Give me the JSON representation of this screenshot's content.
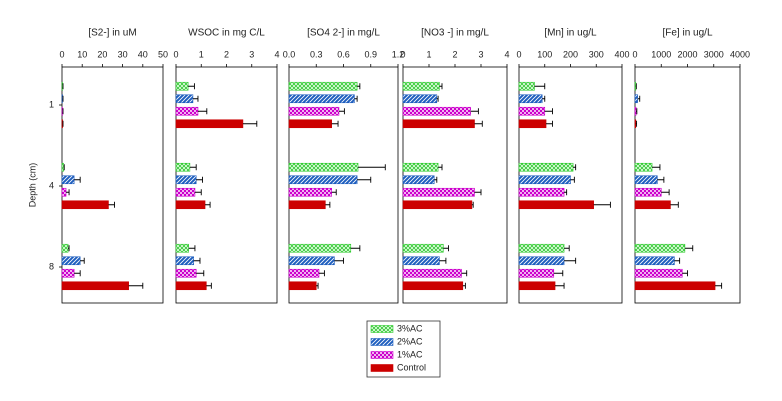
{
  "chart_data": [
    {
      "type": "bar",
      "orientation": "horizontal",
      "title": "[S2-] in uM",
      "y_label": "Depth (cm)",
      "categories": [
        "1",
        "4",
        "8"
      ],
      "xlim": [
        0,
        50
      ],
      "xticks": [
        0,
        10,
        20,
        30,
        40,
        50
      ],
      "series": [
        {
          "name": "3%AC",
          "color": "#33cc33",
          "values": [
            0.3,
            0.8,
            3
          ],
          "errors": [
            0.2,
            0.3,
            0.5
          ]
        },
        {
          "name": "2%AC",
          "color": "#1f5fbf",
          "values": [
            0.3,
            6,
            9
          ],
          "errors": [
            0.2,
            3,
            2
          ]
        },
        {
          "name": "1%AC",
          "color": "#cc00cc",
          "values": [
            0.3,
            2,
            6
          ],
          "errors": [
            0.2,
            1.5,
            3
          ]
        },
        {
          "name": "Control",
          "color": "#cc0000",
          "values": [
            0.3,
            23,
            33
          ],
          "errors": [
            0.2,
            3,
            7
          ]
        }
      ]
    },
    {
      "type": "bar",
      "orientation": "horizontal",
      "title": "WSOC in mg C/L",
      "xlim": [
        0,
        4
      ],
      "xticks": [
        0,
        1,
        2,
        3,
        4
      ],
      "series": [
        {
          "color": "#33cc33",
          "values": [
            0.48,
            0.55,
            0.5
          ],
          "errors": [
            0.25,
            0.25,
            0.25
          ]
        },
        {
          "color": "#1f5fbf",
          "values": [
            0.67,
            0.8,
            0.7
          ],
          "errors": [
            0.2,
            0.25,
            0.25
          ]
        },
        {
          "color": "#cc00cc",
          "values": [
            0.87,
            0.75,
            0.8
          ],
          "errors": [
            0.35,
            0.25,
            0.3
          ]
        },
        {
          "color": "#cc0000",
          "values": [
            2.65,
            1.15,
            1.2
          ],
          "errors": [
            0.55,
            0.2,
            0.2
          ]
        }
      ]
    },
    {
      "type": "bar",
      "orientation": "horizontal",
      "title": "[SO4 2-] in mg/L",
      "xlim": [
        0,
        1.2
      ],
      "xticks": [
        {
          "value": 0,
          "label": "0.0"
        },
        0.3,
        0.6,
        0.9,
        1.2
      ],
      "series": [
        {
          "color": "#33cc33",
          "values": [
            0.75,
            0.76,
            0.68
          ],
          "errors": [
            0.03,
            0.3,
            0.1
          ]
        },
        {
          "color": "#1f5fbf",
          "values": [
            0.72,
            0.75,
            0.5
          ],
          "errors": [
            0.03,
            0.15,
            0.1
          ]
        },
        {
          "color": "#cc00cc",
          "values": [
            0.55,
            0.47,
            0.33
          ],
          "errors": [
            0.06,
            0.05,
            0.06
          ]
        },
        {
          "color": "#cc0000",
          "values": [
            0.47,
            0.4,
            0.3
          ],
          "errors": [
            0.07,
            0.05,
            0.02
          ]
        }
      ]
    },
    {
      "type": "bar",
      "orientation": "horizontal",
      "title": "[NO3 -] in mg/L",
      "xlim": [
        0,
        4
      ],
      "xticks": [
        0,
        1,
        2,
        3,
        4
      ],
      "series": [
        {
          "color": "#33cc33",
          "values": [
            1.4,
            1.35,
            1.55
          ],
          "errors": [
            0.1,
            0.15,
            0.2
          ]
        },
        {
          "color": "#1f5fbf",
          "values": [
            1.3,
            1.2,
            1.4
          ],
          "errors": [
            0.05,
            0.1,
            0.25
          ]
        },
        {
          "color": "#cc00cc",
          "values": [
            2.6,
            2.75,
            2.25
          ],
          "errors": [
            0.3,
            0.25,
            0.2
          ]
        },
        {
          "color": "#cc0000",
          "values": [
            2.75,
            2.65,
            2.3
          ],
          "errors": [
            0.3,
            0.05,
            0.1
          ]
        }
      ]
    },
    {
      "type": "bar",
      "orientation": "horizontal",
      "title": "[Mn] in ug/L",
      "xlim": [
        0,
        400
      ],
      "xticks": [
        0,
        100,
        200,
        300,
        400
      ],
      "series": [
        {
          "color": "#33cc33",
          "values": [
            60,
            210,
            175
          ],
          "errors": [
            40,
            10,
            20
          ]
        },
        {
          "color": "#1f5fbf",
          "values": [
            90,
            200,
            175
          ],
          "errors": [
            10,
            15,
            45
          ]
        },
        {
          "color": "#cc00cc",
          "values": [
            100,
            175,
            135
          ],
          "errors": [
            30,
            10,
            35
          ]
        },
        {
          "color": "#cc0000",
          "values": [
            105,
            290,
            140
          ],
          "errors": [
            25,
            65,
            35
          ]
        }
      ]
    },
    {
      "type": "bar",
      "orientation": "horizontal",
      "title": "[Fe] in ug/L",
      "xlim": [
        0,
        4000
      ],
      "xticks": [
        0,
        1000,
        2000,
        3000,
        4000
      ],
      "series": [
        {
          "color": "#33cc33",
          "values": [
            30,
            650,
            1900
          ],
          "errors": [
            20,
            300,
            300
          ]
        },
        {
          "color": "#1f5fbf",
          "values": [
            100,
            850,
            1500
          ],
          "errors": [
            80,
            250,
            200
          ]
        },
        {
          "color": "#cc00cc",
          "values": [
            40,
            1000,
            1800
          ],
          "errors": [
            30,
            300,
            200
          ]
        },
        {
          "color": "#cc0000",
          "values": [
            30,
            1350,
            3050
          ],
          "errors": [
            30,
            300,
            250
          ]
        }
      ]
    }
  ]
}
